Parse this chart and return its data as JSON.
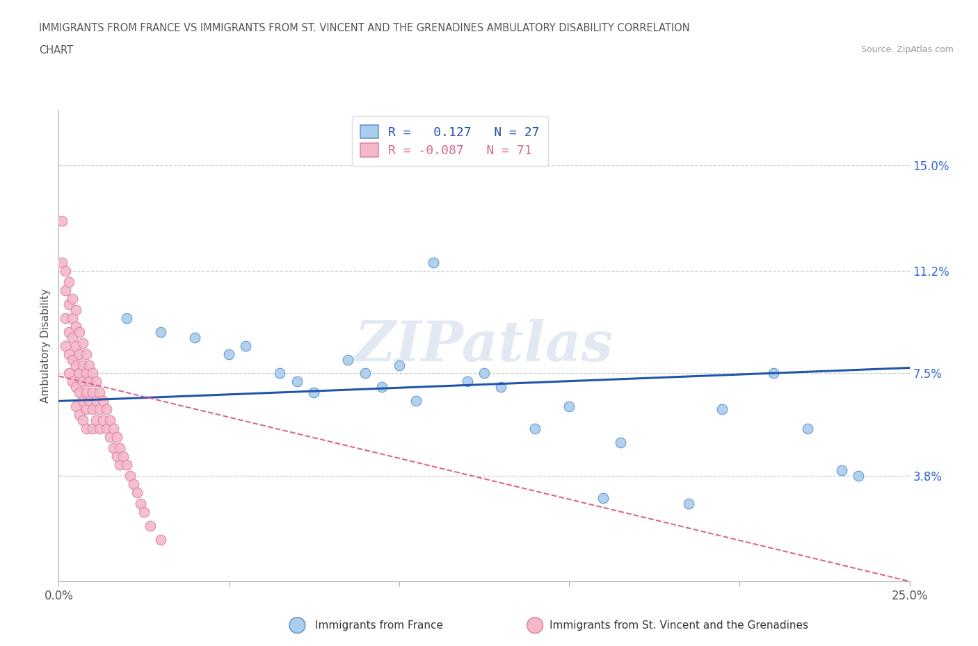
{
  "title_line1": "IMMIGRANTS FROM FRANCE VS IMMIGRANTS FROM ST. VINCENT AND THE GRENADINES AMBULATORY DISABILITY CORRELATION",
  "title_line2": "CHART",
  "source_text": "Source: ZipAtlas.com",
  "ylabel": "Ambulatory Disability",
  "xlim": [
    0.0,
    0.25
  ],
  "ylim": [
    0.0,
    0.17
  ],
  "ytick_labels_right": [
    "3.8%",
    "7.5%",
    "11.2%",
    "15.0%"
  ],
  "ytick_values_right": [
    0.038,
    0.075,
    0.112,
    0.15
  ],
  "grid_color": "#cccccc",
  "background_color": "#ffffff",
  "france_color": "#aaccee",
  "france_edge_color": "#6699cc",
  "stvincent_color": "#f5b8c8",
  "stvincent_edge_color": "#dd88aa",
  "france_line_color": "#2255aa",
  "stvincent_line_color": "#dd6688",
  "watermark": "ZIPatlas",
  "legend_france_label": "R =   0.127   N = 27",
  "legend_stvincent_label": "R = -0.087   N = 71",
  "legend_title_france": "Immigrants from France",
  "legend_title_stvincent": "Immigrants from St. Vincent and the Grenadines",
  "france_line_x": [
    0.0,
    0.25
  ],
  "france_line_y": [
    0.065,
    0.077
  ],
  "sv_line_x": [
    0.0,
    0.25
  ],
  "sv_line_y": [
    0.074,
    0.0
  ],
  "france_x": [
    0.02,
    0.03,
    0.04,
    0.05,
    0.055,
    0.065,
    0.07,
    0.075,
    0.085,
    0.09,
    0.095,
    0.1,
    0.105,
    0.11,
    0.12,
    0.125,
    0.13,
    0.14,
    0.15,
    0.16,
    0.165,
    0.185,
    0.195,
    0.21,
    0.22,
    0.23,
    0.235
  ],
  "france_y": [
    0.095,
    0.09,
    0.088,
    0.082,
    0.085,
    0.075,
    0.072,
    0.068,
    0.08,
    0.075,
    0.07,
    0.078,
    0.065,
    0.115,
    0.072,
    0.075,
    0.07,
    0.055,
    0.063,
    0.03,
    0.05,
    0.028,
    0.062,
    0.075,
    0.055,
    0.04,
    0.038
  ],
  "sv_x": [
    0.001,
    0.001,
    0.002,
    0.002,
    0.002,
    0.002,
    0.003,
    0.003,
    0.003,
    0.003,
    0.003,
    0.004,
    0.004,
    0.004,
    0.004,
    0.004,
    0.005,
    0.005,
    0.005,
    0.005,
    0.005,
    0.005,
    0.006,
    0.006,
    0.006,
    0.006,
    0.006,
    0.007,
    0.007,
    0.007,
    0.007,
    0.007,
    0.008,
    0.008,
    0.008,
    0.008,
    0.008,
    0.009,
    0.009,
    0.009,
    0.01,
    0.01,
    0.01,
    0.01,
    0.011,
    0.011,
    0.011,
    0.012,
    0.012,
    0.012,
    0.013,
    0.013,
    0.014,
    0.014,
    0.015,
    0.015,
    0.016,
    0.016,
    0.017,
    0.017,
    0.018,
    0.018,
    0.019,
    0.02,
    0.021,
    0.022,
    0.023,
    0.024,
    0.025,
    0.027,
    0.03
  ],
  "sv_y": [
    0.13,
    0.115,
    0.112,
    0.105,
    0.095,
    0.085,
    0.108,
    0.1,
    0.09,
    0.082,
    0.075,
    0.102,
    0.095,
    0.088,
    0.08,
    0.072,
    0.098,
    0.092,
    0.085,
    0.078,
    0.07,
    0.063,
    0.09,
    0.082,
    0.075,
    0.068,
    0.06,
    0.086,
    0.078,
    0.072,
    0.065,
    0.058,
    0.082,
    0.075,
    0.068,
    0.062,
    0.055,
    0.078,
    0.072,
    0.065,
    0.075,
    0.068,
    0.062,
    0.055,
    0.072,
    0.065,
    0.058,
    0.068,
    0.062,
    0.055,
    0.065,
    0.058,
    0.062,
    0.055,
    0.058,
    0.052,
    0.055,
    0.048,
    0.052,
    0.045,
    0.048,
    0.042,
    0.045,
    0.042,
    0.038,
    0.035,
    0.032,
    0.028,
    0.025,
    0.02,
    0.015
  ]
}
